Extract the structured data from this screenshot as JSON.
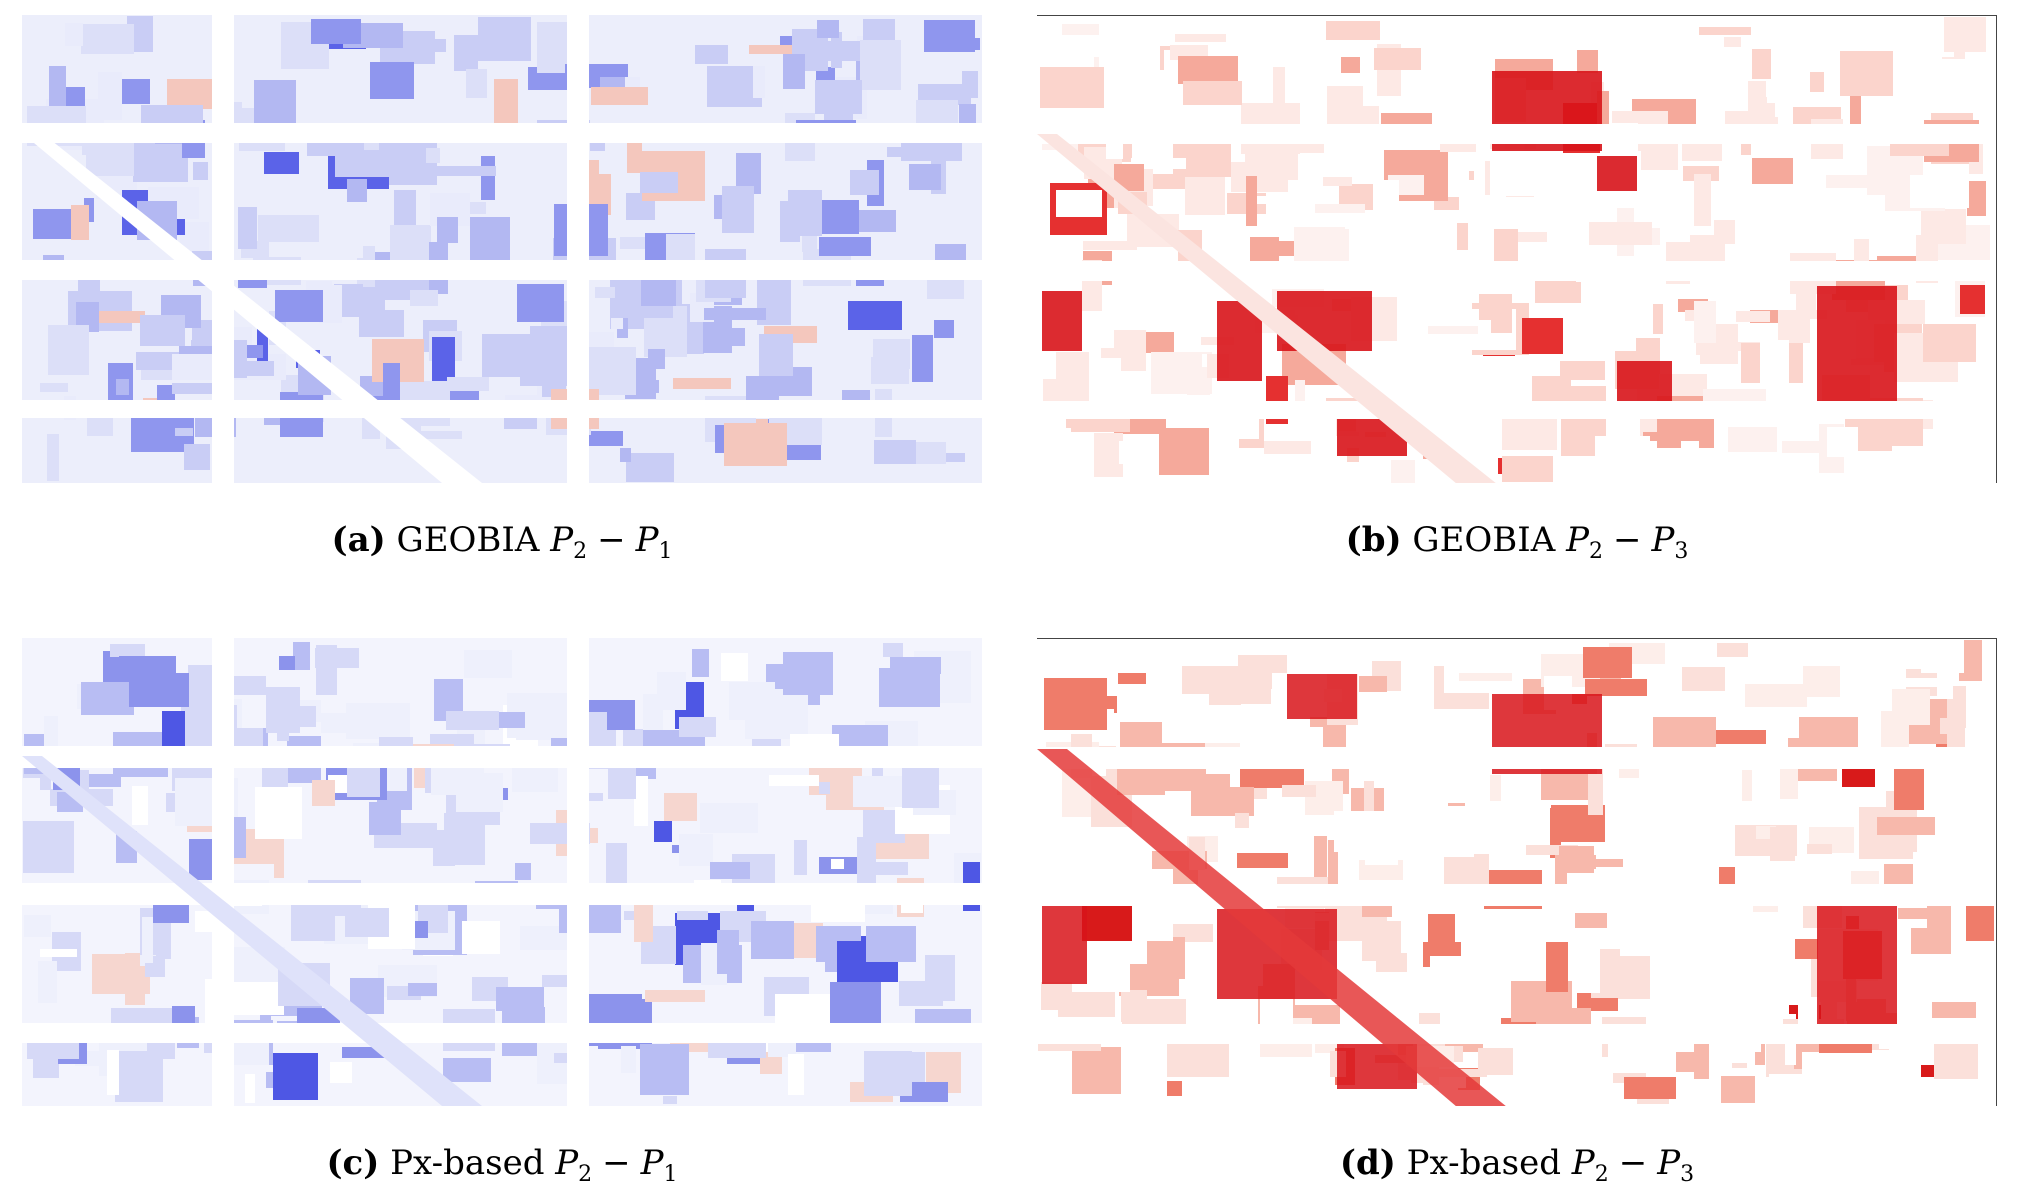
{
  "panels": [
    {
      "id": "a",
      "label": "(a)",
      "method": "GEOBIA",
      "expr": {
        "left_var": "P",
        "left_sub": "2",
        "op": "−",
        "right_var": "P",
        "right_sub": "1"
      },
      "palette": "diverging-blue-red"
    },
    {
      "id": "b",
      "label": "(b)",
      "method": "GEOBIA",
      "expr": {
        "left_var": "P",
        "left_sub": "2",
        "op": "−",
        "right_var": "P",
        "right_sub": "3"
      },
      "palette": "white-red"
    },
    {
      "id": "c",
      "label": "(c)",
      "method": "Px-based",
      "expr": {
        "left_var": "P",
        "left_sub": "2",
        "op": "−",
        "right_var": "P",
        "right_sub": "1"
      },
      "palette": "diverging-blue-red"
    },
    {
      "id": "d",
      "label": "(d)",
      "method": "Px-based",
      "expr": {
        "left_var": "P",
        "left_sub": "2",
        "op": "−",
        "right_var": "P",
        "right_sub": "3"
      },
      "palette": "white-red"
    }
  ],
  "colors": {
    "blue": "#3a3aff",
    "light_blue": "#c8ccf6",
    "red": "#e11a1a",
    "light_red": "#f6b5a8",
    "background": "#ffffff"
  }
}
